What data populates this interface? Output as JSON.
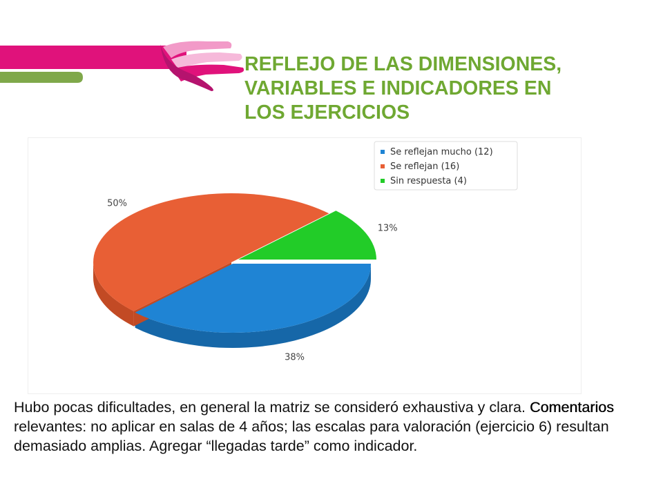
{
  "title": {
    "lines": [
      "REFLEJO DE LAS DIMENSIONES,",
      "VARIABLES E INDICADORES EN",
      "LOS EJERCICIOS"
    ]
  },
  "colors": {
    "title": "#6fa832",
    "magenta_band": "#e0127b",
    "green_band": "#7fa84a",
    "pink_light": "#f29ac8",
    "purple": "#b5136e"
  },
  "chart_data": {
    "type": "pie",
    "style": "3d-exploded",
    "legend_position": "top-right",
    "slices": [
      {
        "label": "Se reflejan mucho (12)",
        "value": 12,
        "percent_label": "38%",
        "color": "#1f84d4",
        "side_color": "#1667a8"
      },
      {
        "label": "Se reflejan (16)",
        "value": 16,
        "percent_label": "50%",
        "color": "#e85f35",
        "side_color": "#c24a24"
      },
      {
        "label": "Sin respuesta (4)",
        "value": 4,
        "percent_label": "13%",
        "color": "#22cc28",
        "side_color": "#17a31d"
      }
    ]
  },
  "caption": {
    "part1": "Hubo pocas dificultades, en general la matriz se consideró exhaustiva y clara. ",
    "bold": "Comentarios",
    "part2": " relevantes: no aplicar en salas de 4 años; las escalas para valoración (ejercicio 6) resultan demasiado amplias. Agregar “llegadas tarde” como indicador."
  }
}
